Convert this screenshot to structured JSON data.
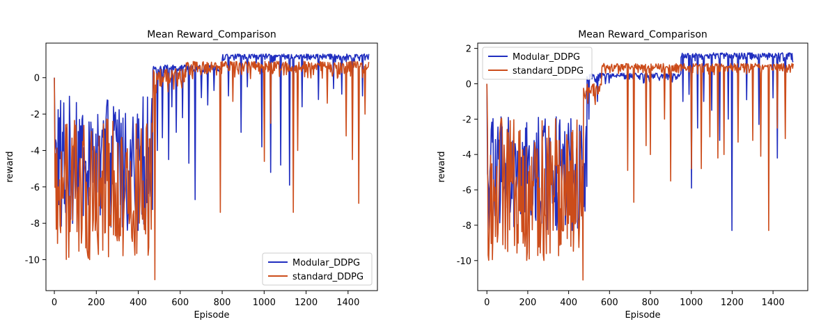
{
  "chart_data": [
    {
      "type": "line",
      "title": "Mean Reward_Comparison",
      "xlabel": "Episode",
      "ylabel": "reward",
      "xlim": [
        -40,
        1540
      ],
      "ylim": [
        -11.7,
        1.9
      ],
      "xticks": [
        0,
        200,
        400,
        600,
        800,
        1000,
        1200,
        1400
      ],
      "yticks": [
        -10,
        -8,
        -6,
        -4,
        -2,
        0
      ],
      "legend_position": "lower right",
      "grid": false,
      "series": [
        {
          "name": "Modular_DDPG",
          "color": "#1f2dbf",
          "phases": [
            {
              "x0": 0,
              "x1": 470,
              "low": -8.4,
              "high": -1.0,
              "start": 0.0
            },
            {
              "x0": 470,
              "x1": 800,
              "low": 0.0,
              "high": 0.7,
              "start": 0.4
            },
            {
              "x0": 800,
              "x1": 1500,
              "low": 0.8,
              "high": 1.3,
              "start": 1.0
            }
          ],
          "dips": [
            [
              490,
              -4.0
            ],
            [
              515,
              -3.3
            ],
            [
              545,
              -4.5
            ],
            [
              560,
              -1.6
            ],
            [
              580,
              -3.0
            ],
            [
              610,
              -2.2
            ],
            [
              640,
              -4.7
            ],
            [
              670,
              -6.7
            ],
            [
              700,
              -1.1
            ],
            [
              730,
              -1.5
            ],
            [
              760,
              -0.7
            ],
            [
              830,
              -1.0
            ],
            [
              890,
              -3.0
            ],
            [
              920,
              -0.5
            ],
            [
              990,
              -3.8
            ],
            [
              1030,
              -5.2
            ],
            [
              1080,
              -4.8
            ],
            [
              1120,
              -5.9
            ],
            [
              1140,
              -4.4
            ],
            [
              1180,
              -1.6
            ],
            [
              1260,
              -1.2
            ],
            [
              1330,
              -0.6
            ],
            [
              1370,
              -0.9
            ],
            [
              1420,
              -1.1
            ],
            [
              1470,
              -1.0
            ]
          ]
        },
        {
          "name": "standard_DDPG",
          "color": "#cc4c1a",
          "phases": [
            {
              "x0": 0,
              "x1": 470,
              "low": -10.0,
              "high": -2.2,
              "start": 0.0
            },
            {
              "x0": 470,
              "x1": 620,
              "low": -1.2,
              "high": 0.5,
              "start": -1.2
            },
            {
              "x0": 620,
              "x1": 1500,
              "low": -0.2,
              "high": 0.9,
              "start": 0.1
            }
          ],
          "dips": [
            [
              480,
              -11.1
            ],
            [
              790,
              -7.4
            ],
            [
              850,
              -1.3
            ],
            [
              1000,
              -4.6
            ],
            [
              1030,
              -2.5
            ],
            [
              1140,
              -7.4
            ],
            [
              1160,
              -4.0
            ],
            [
              1300,
              -1.4
            ],
            [
              1390,
              -3.2
            ],
            [
              1420,
              -4.5
            ],
            [
              1450,
              -6.9
            ],
            [
              1480,
              -2.0
            ]
          ]
        }
      ]
    },
    {
      "type": "line",
      "title": "Mean Reward_Comparison",
      "xlabel": "Episode",
      "ylabel": "reward",
      "xlim": [
        -45,
        1570
      ],
      "ylim": [
        -11.7,
        2.3
      ],
      "xticks": [
        0,
        200,
        400,
        600,
        800,
        1000,
        1200,
        1400
      ],
      "yticks": [
        -10,
        -8,
        -6,
        -4,
        -2,
        0,
        2
      ],
      "legend_position": "upper left",
      "grid": false,
      "series": [
        {
          "name": "Modular_DDPG",
          "color": "#1f2dbf",
          "phases": [
            {
              "x0": 0,
              "x1": 490,
              "low": -8.4,
              "high": -1.8,
              "start": 0.0
            },
            {
              "x0": 490,
              "x1": 950,
              "low": 0.0,
              "high": 0.6,
              "start": 0.4
            },
            {
              "x0": 950,
              "x1": 1500,
              "low": 1.2,
              "high": 1.75,
              "start": 1.5
            }
          ],
          "dips": [
            [
              480,
              -7.2
            ],
            [
              500,
              -2.0
            ],
            [
              540,
              -1.0
            ],
            [
              580,
              0.0
            ],
            [
              960,
              -1.0
            ],
            [
              990,
              -0.6
            ],
            [
              1000,
              -5.9
            ],
            [
              1030,
              -2.5
            ],
            [
              1060,
              -1.0
            ],
            [
              1100,
              -1.5
            ],
            [
              1140,
              -3.2
            ],
            [
              1180,
              -2.0
            ],
            [
              1200,
              -8.3
            ],
            [
              1230,
              -1.8
            ],
            [
              1270,
              -0.9
            ],
            [
              1330,
              -2.3
            ],
            [
              1400,
              -0.8
            ],
            [
              1420,
              -4.2
            ],
            [
              1460,
              -0.4
            ]
          ]
        },
        {
          "name": "standard_DDPG",
          "color": "#cc4c1a",
          "phases": [
            {
              "x0": 0,
              "x1": 470,
              "low": -10.0,
              "high": -1.8,
              "start": 0.0
            },
            {
              "x0": 470,
              "x1": 560,
              "low": -1.5,
              "high": 0.0,
              "start": -0.8
            },
            {
              "x0": 560,
              "x1": 1500,
              "low": 0.4,
              "high": 1.15,
              "start": 0.1
            }
          ],
          "dips": [
            [
              470,
              -11.1
            ],
            [
              690,
              -4.9
            ],
            [
              720,
              -6.7
            ],
            [
              780,
              -3.5
            ],
            [
              800,
              -4.0
            ],
            [
              870,
              -2.0
            ],
            [
              900,
              -5.5
            ],
            [
              1000,
              -4.8
            ],
            [
              1050,
              -4.8
            ],
            [
              1090,
              -3.0
            ],
            [
              1130,
              -4.2
            ],
            [
              1160,
              -4.0
            ],
            [
              1230,
              -3.3
            ],
            [
              1300,
              -3.2
            ],
            [
              1340,
              -4.1
            ],
            [
              1380,
              -8.3
            ],
            [
              1420,
              -2.5
            ],
            [
              1460,
              -3.1
            ]
          ]
        }
      ]
    }
  ]
}
